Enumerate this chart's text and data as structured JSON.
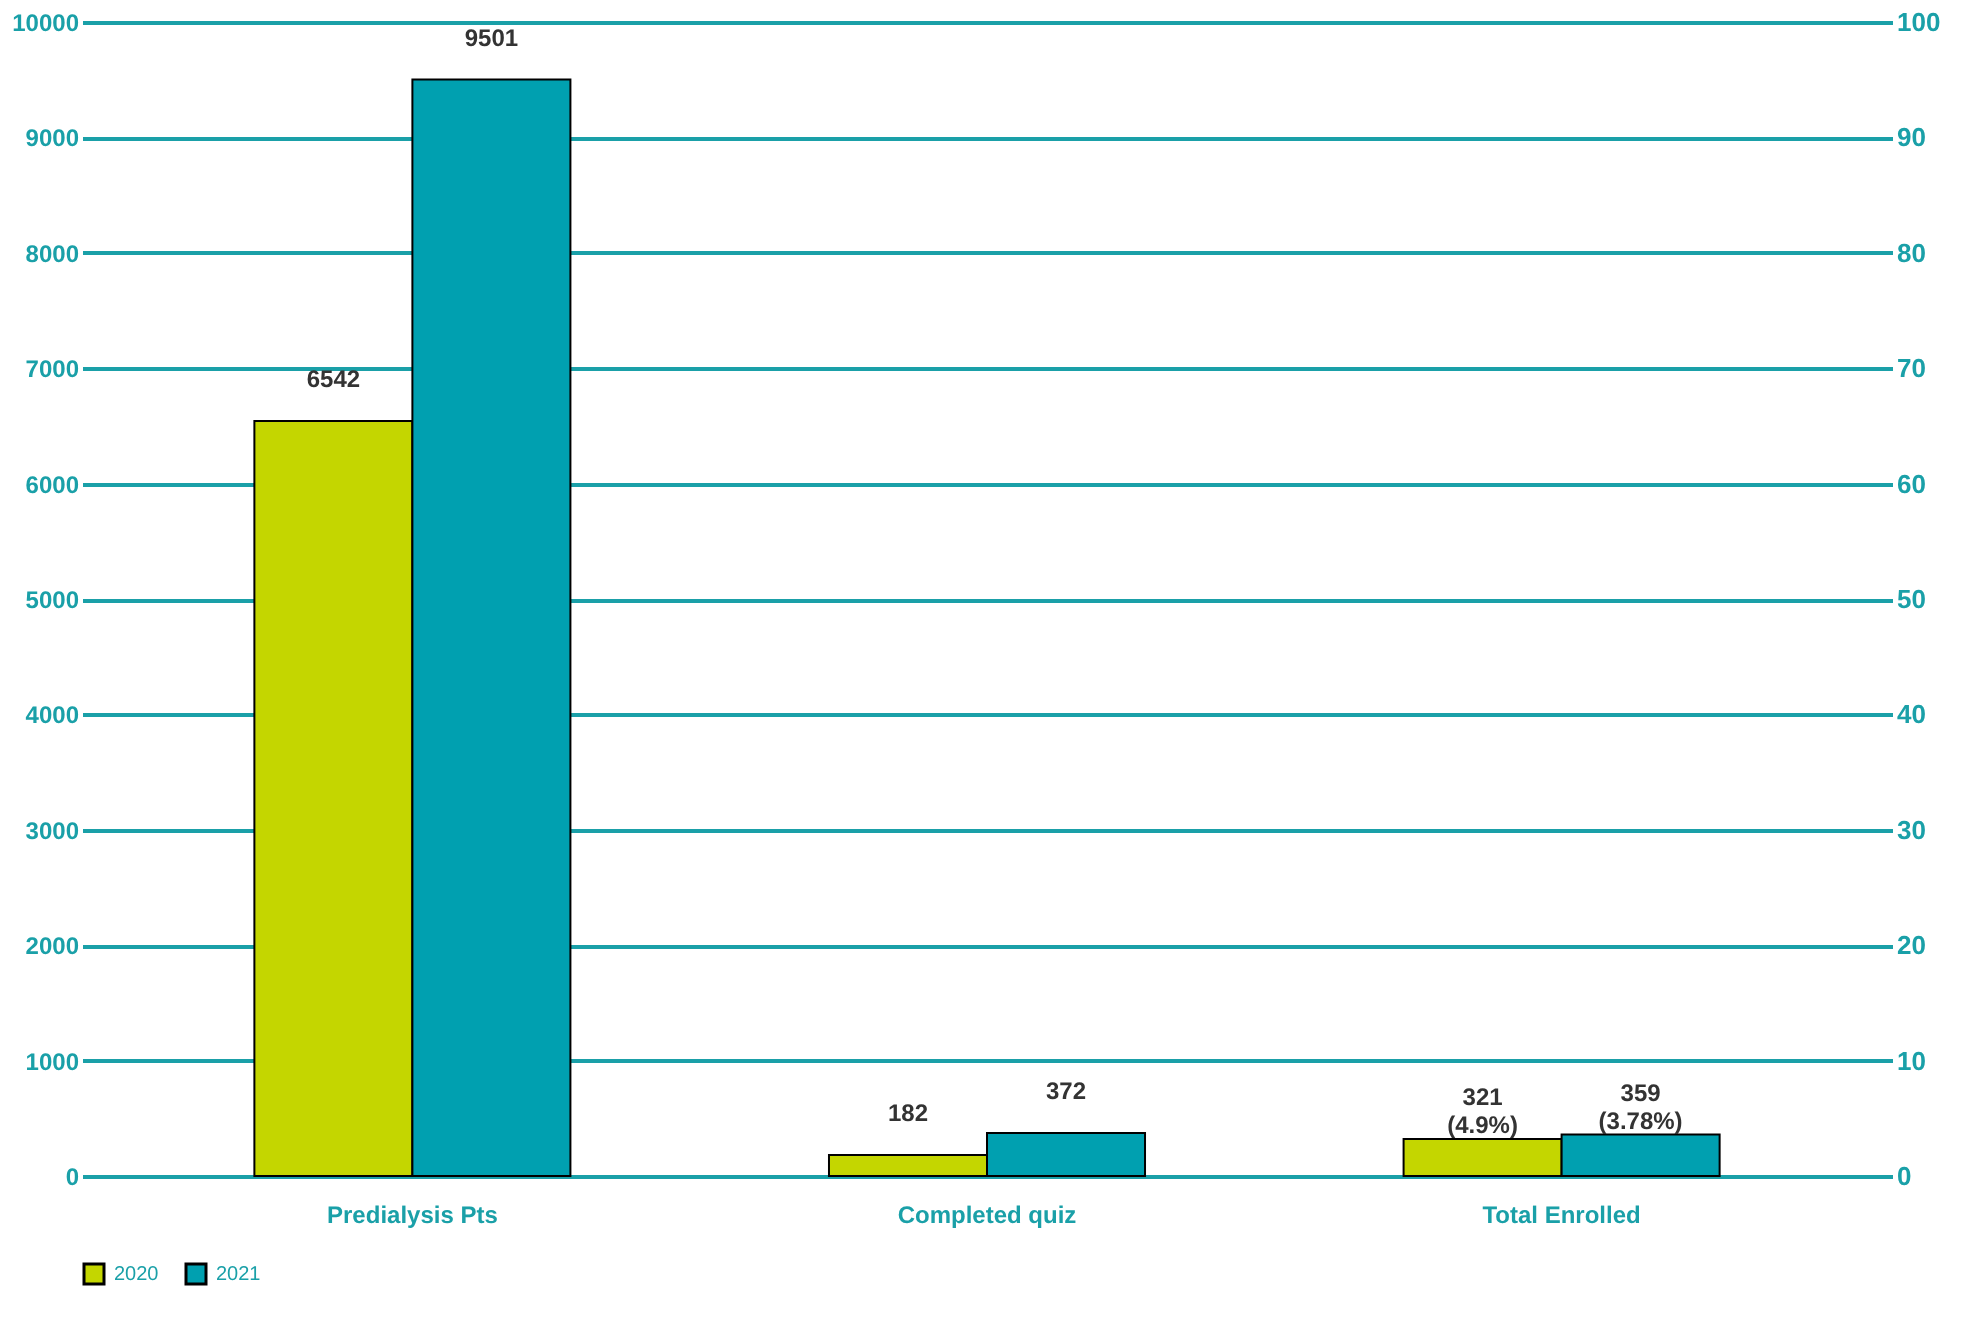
{
  "chart_data": {
    "type": "bar",
    "categories": [
      "Predialysis Pts",
      "Completed quiz",
      "Total Enrolled"
    ],
    "series": [
      {
        "name": "2020",
        "color": "#c4d600",
        "values": [
          6542,
          182,
          321
        ],
        "value_labels": [
          "6542",
          "182",
          "321 (4.9%)"
        ]
      },
      {
        "name": "2021",
        "color": "#00a0b0",
        "values": [
          9501,
          372,
          359
        ],
        "value_labels": [
          "9501",
          "372",
          "359 (3.78%)"
        ]
      }
    ],
    "ylim": [
      0,
      10000
    ],
    "yticks": [
      0,
      1000,
      2000,
      3000,
      4000,
      5000,
      6000,
      7000,
      8000,
      9000,
      10000
    ],
    "y2lim": [
      0,
      100
    ],
    "y2ticks": [
      0,
      10,
      20,
      30,
      40,
      50,
      60,
      70,
      80,
      90,
      100
    ],
    "grid": "y",
    "legend": "bottom"
  }
}
